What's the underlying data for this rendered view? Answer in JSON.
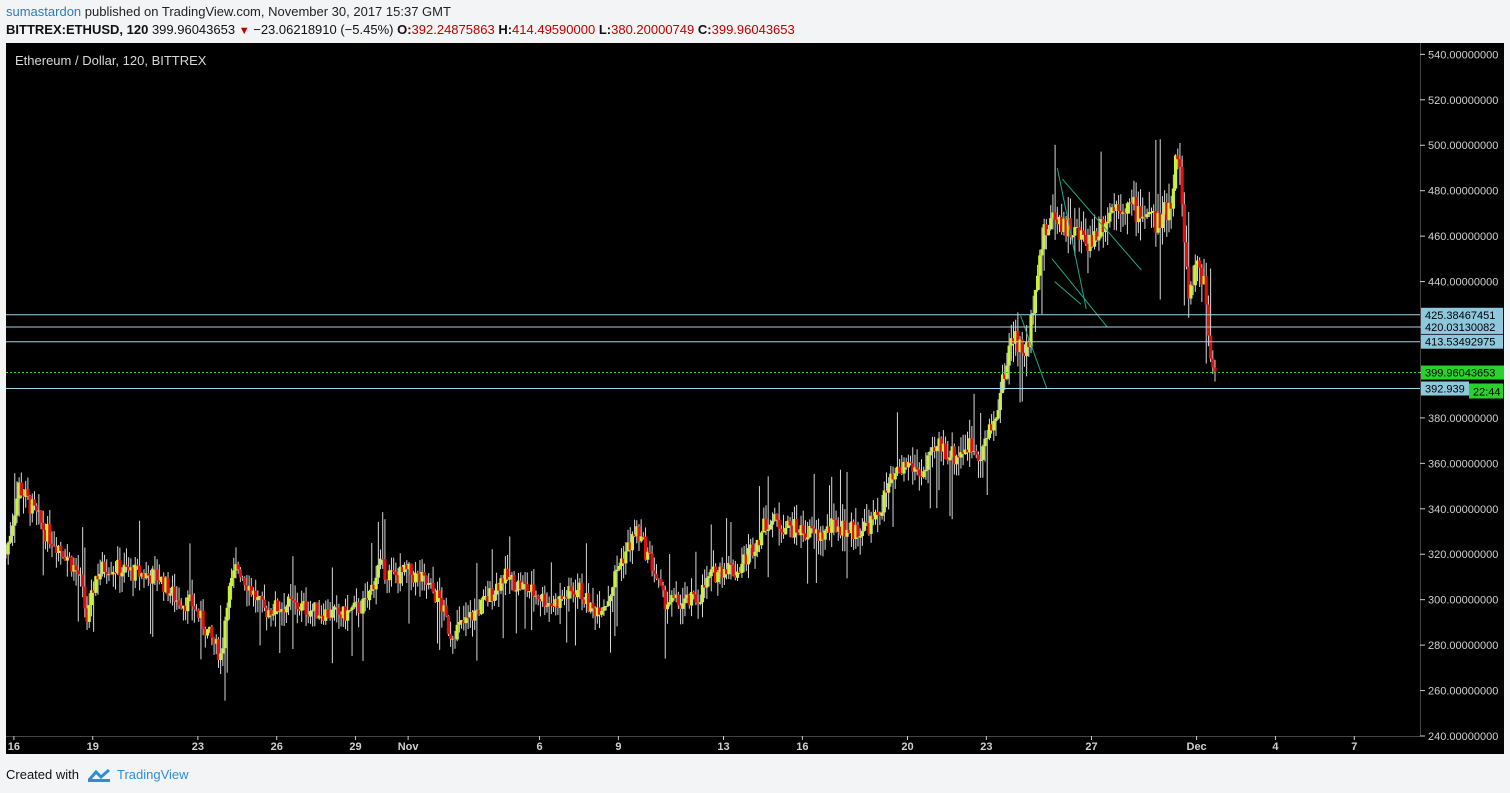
{
  "header": {
    "user": "sumastardon",
    "published_text": "published on TradingView.com, November 30, 2017 15:37 GMT",
    "symbol": "BITTREX:ETHUSD, 120",
    "last": "399.96043653",
    "change": "−23.06218910 (−5.45%)",
    "o_label": "O:",
    "o_value": "392.24875863",
    "h_label": "H:",
    "h_value": "414.49590000",
    "l_label": "L:",
    "l_value": "380.20000749",
    "c_label": "C:",
    "c_value": "399.96043653"
  },
  "footer": {
    "created_with": "Created with",
    "brand": "TradingView"
  },
  "colors": {
    "up": "#c8f03c",
    "down": "#e01010",
    "wick": "#d8d8d8",
    "hline": "#9fd6e8",
    "price_line": "#2bd12b",
    "trend": "#1fa88a",
    "background": "#000000",
    "price_label": "#2bd12b",
    "level_label": "#8ec8dc"
  },
  "chart_data": {
    "type": "candlestick",
    "title": "Ethereum / Dollar, 120, BITTREX",
    "ylim": [
      240,
      545
    ],
    "y_ticks": [
      "540.00000000",
      "520.00000000",
      "500.00000000",
      "480.00000000",
      "460.00000000",
      "440.00000000",
      "420.00000000",
      "400.00000000",
      "380.00000000",
      "360.00000000",
      "340.00000000",
      "320.00000000",
      "300.00000000",
      "280.00000000",
      "260.00000000",
      "240.00000000"
    ],
    "x_ticks": [
      "16",
      "19",
      "23",
      "26",
      "29",
      "Nov",
      "6",
      "9",
      "13",
      "16",
      "20",
      "23",
      "27",
      "Dec",
      "4",
      "7"
    ],
    "x_tick_days": [
      -15,
      -12,
      -8,
      -5,
      -2,
      0,
      5,
      8,
      12,
      15,
      19,
      22,
      26,
      30,
      33,
      36
    ],
    "x_range_days": [
      -15.3,
      38.5
    ],
    "close_path": [
      [
        -15.3,
        320
      ],
      [
        -14.8,
        350
      ],
      [
        -14.3,
        340
      ],
      [
        -13.8,
        330
      ],
      [
        -13.0,
        320
      ],
      [
        -12.5,
        310
      ],
      [
        -12.2,
        290
      ],
      [
        -11.9,
        310
      ],
      [
        -11.5,
        315
      ],
      [
        -10.5,
        312
      ],
      [
        -9.5,
        310
      ],
      [
        -8.8,
        300
      ],
      [
        -8.2,
        298
      ],
      [
        -7.6,
        285
      ],
      [
        -7.1,
        275
      ],
      [
        -6.9,
        300
      ],
      [
        -6.5,
        315
      ],
      [
        -6.0,
        305
      ],
      [
        -5.5,
        295
      ],
      [
        -4.5,
        298
      ],
      [
        -3.5,
        295
      ],
      [
        -2.5,
        293
      ],
      [
        -1.6,
        298
      ],
      [
        -1.1,
        315
      ],
      [
        -0.6,
        310
      ],
      [
        0.0,
        312
      ],
      [
        0.6,
        308
      ],
      [
        1.2,
        300
      ],
      [
        1.6,
        285
      ],
      [
        2.2,
        290
      ],
      [
        3.0,
        300
      ],
      [
        3.6,
        310
      ],
      [
        4.5,
        305
      ],
      [
        5.5,
        298
      ],
      [
        6.5,
        305
      ],
      [
        7.0,
        295
      ],
      [
        7.6,
        300
      ],
      [
        8.0,
        315
      ],
      [
        8.7,
        330
      ],
      [
        9.3,
        315
      ],
      [
        9.7,
        300
      ],
      [
        10.4,
        298
      ],
      [
        11.0,
        300
      ],
      [
        11.5,
        310
      ],
      [
        12.1,
        315
      ],
      [
        12.5,
        312
      ],
      [
        13.2,
        325
      ],
      [
        13.7,
        335
      ],
      [
        14.2,
        333
      ],
      [
        15.0,
        330
      ],
      [
        15.7,
        328
      ],
      [
        16.3,
        333
      ],
      [
        17.0,
        330
      ],
      [
        17.8,
        335
      ],
      [
        18.3,
        350
      ],
      [
        19.0,
        360
      ],
      [
        19.6,
        355
      ],
      [
        20.2,
        368
      ],
      [
        20.8,
        363
      ],
      [
        21.3,
        368
      ],
      [
        21.8,
        365
      ],
      [
        22.3,
        378
      ],
      [
        22.7,
        400
      ],
      [
        23.0,
        418
      ],
      [
        23.3,
        410
      ],
      [
        23.6,
        410
      ],
      [
        23.9,
        445
      ],
      [
        24.2,
        460
      ],
      [
        24.6,
        470
      ],
      [
        25.0,
        465
      ],
      [
        25.5,
        460
      ],
      [
        26.0,
        458
      ],
      [
        26.5,
        468
      ],
      [
        27.0,
        475
      ],
      [
        27.6,
        472
      ],
      [
        28.1,
        470
      ],
      [
        28.6,
        465
      ],
      [
        29.0,
        475
      ],
      [
        29.3,
        500
      ],
      [
        29.5,
        465
      ],
      [
        29.7,
        430
      ],
      [
        30.0,
        450
      ],
      [
        30.3,
        440
      ],
      [
        30.5,
        410
      ],
      [
        30.7,
        400
      ]
    ],
    "levels": [
      {
        "label": "425.38467451",
        "value": 425.38467451
      },
      {
        "label": "420.03130082",
        "value": 420.03130082
      },
      {
        "label": "413.53492975",
        "value": 413.53492975
      },
      {
        "label": "392.939",
        "value": 392.939
      }
    ],
    "current_price": {
      "label": "399.96043653",
      "value": 399.96043653
    },
    "countdown": "22:44",
    "trend_lines": [
      [
        [
          23.3,
          425
        ],
        [
          24.3,
          393
        ]
      ],
      [
        [
          24.6,
          440
        ],
        [
          25.6,
          430
        ]
      ],
      [
        [
          24.5,
          450
        ],
        [
          26.6,
          420
        ]
      ],
      [
        [
          24.7,
          490
        ],
        [
          25.8,
          428
        ]
      ],
      [
        [
          24.9,
          485
        ],
        [
          27.9,
          445
        ]
      ]
    ]
  }
}
